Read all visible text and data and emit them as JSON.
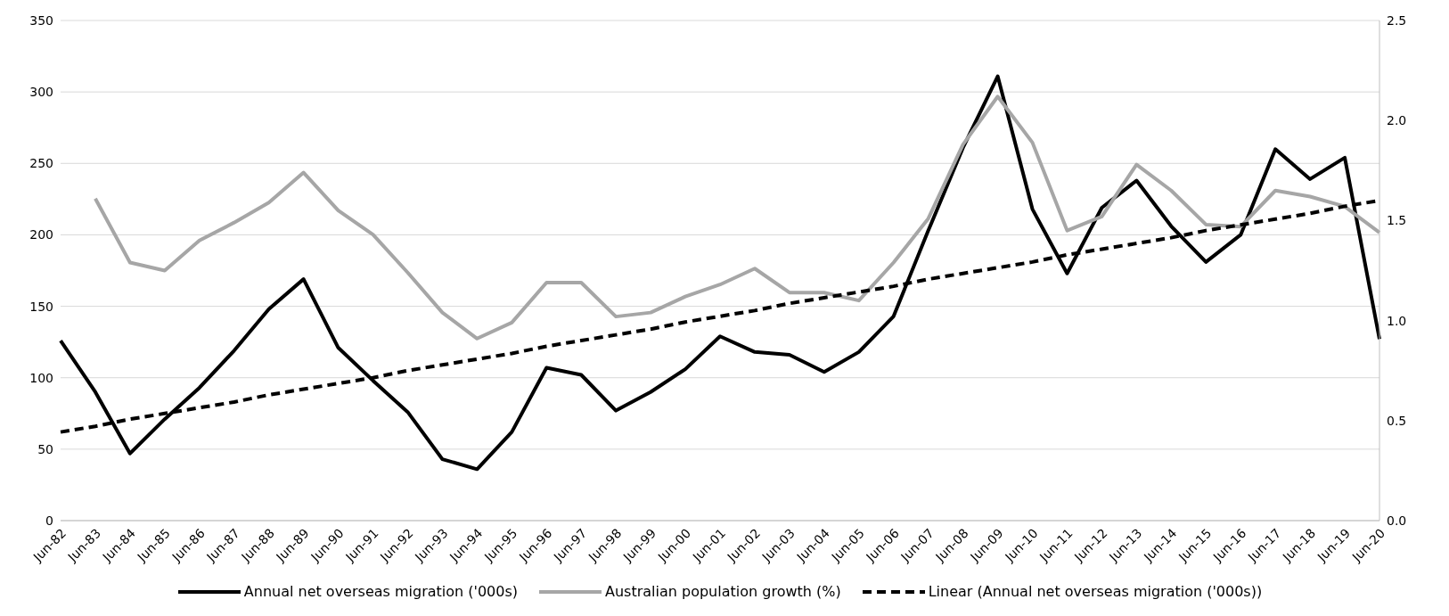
{
  "chart_data": {
    "type": "line",
    "categories": [
      "Jun-82",
      "Jun-83",
      "Jun-84",
      "Jun-85",
      "Jun-86",
      "Jun-87",
      "Jun-88",
      "Jun-89",
      "Jun-90",
      "Jun-91",
      "Jun-92",
      "Jun-93",
      "Jun-94",
      "Jun-95",
      "Jun-96",
      "Jun-97",
      "Jun-98",
      "Jun-99",
      "Jun-00",
      "Jun-01",
      "Jun-02",
      "Jun-03",
      "Jun-04",
      "Jun-05",
      "Jun-06",
      "Jun-07",
      "Jun-08",
      "Jun-09",
      "Jun-10",
      "Jun-11",
      "Jun-12",
      "Jun-13",
      "Jun-14",
      "Jun-15",
      "Jun-16",
      "Jun-17",
      "Jun-18",
      "Jun-19",
      "Jun-20"
    ],
    "series": [
      {
        "name": "Annual net overseas migration ('000s)",
        "color": "#000000",
        "line_style": "solid",
        "values": [
          126,
          90,
          47,
          71,
          93,
          119,
          148,
          169,
          121,
          98,
          76,
          43,
          36,
          62,
          107,
          102,
          77,
          90,
          106,
          129,
          118,
          116,
          104,
          118,
          143,
          203,
          261,
          311,
          218,
          173,
          219,
          238,
          206,
          181,
          200,
          260,
          239,
          254,
          127
        ]
      },
      {
        "name": "Australian population growth (%)",
        "color": "#a6a6a6",
        "axis": "y2",
        "line_style": "solid",
        "values": [
          null,
          1.61,
          1.29,
          1.25,
          1.4,
          1.49,
          1.59,
          1.74,
          1.55,
          1.43,
          1.24,
          1.04,
          0.91,
          0.99,
          1.19,
          1.19,
          1.02,
          1.04,
          1.12,
          1.18,
          1.26,
          1.14,
          1.14,
          1.1,
          1.29,
          1.51,
          1.88,
          2.12,
          1.89,
          1.45,
          1.52,
          1.78,
          1.65,
          1.48,
          1.47,
          1.65,
          1.62,
          1.57,
          1.44
        ]
      },
      {
        "name": "Linear (Annual net overseas migration ('000s))",
        "color": "#000000",
        "line_style": "dashed",
        "values": [
          62,
          66,
          71,
          75,
          79,
          83,
          88,
          92,
          96,
          100,
          105,
          109,
          113,
          117,
          122,
          126,
          130,
          134,
          139,
          143,
          147,
          152,
          156,
          160,
          164,
          169,
          173,
          177,
          181,
          186,
          190,
          194,
          198,
          203,
          207,
          211,
          215,
          220,
          224
        ]
      }
    ],
    "ylim": [
      0,
      350
    ],
    "yticks": [
      0,
      50,
      100,
      150,
      200,
      250,
      300,
      350
    ],
    "y2lim": [
      0,
      2.5
    ],
    "y2ticks": [
      {
        "value": 0,
        "label": "0.0"
      },
      {
        "value": 0.5,
        "label": "0.5"
      },
      {
        "value": 1,
        "label": "1.0"
      },
      {
        "value": 1.5,
        "label": "1.5"
      },
      {
        "value": 2,
        "label": "2.0"
      },
      {
        "value": 2.5,
        "label": "2.5"
      }
    ],
    "grid": "y",
    "legend": "bottom",
    "marker": "none"
  }
}
